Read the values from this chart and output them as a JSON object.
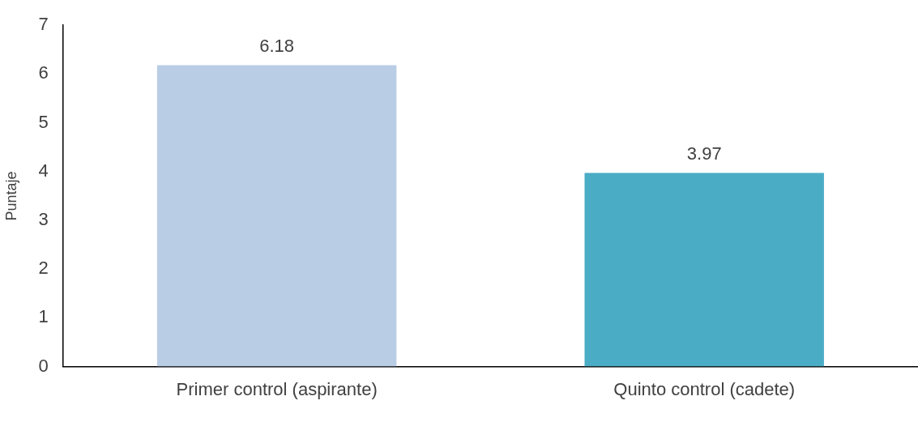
{
  "chart_data": {
    "type": "bar",
    "ylabel": "Puntaje",
    "categories": [
      "Primer control (aspirante)",
      "Quinto control (cadete)"
    ],
    "values": [
      6.18,
      3.97
    ],
    "colors": [
      "#b9cde5",
      "#4bacc6"
    ],
    "ylim": [
      0,
      7
    ],
    "yticks": [
      0,
      1,
      2,
      3,
      4,
      5,
      6,
      7
    ],
    "grid": false,
    "legend": false,
    "data_labels": true
  }
}
